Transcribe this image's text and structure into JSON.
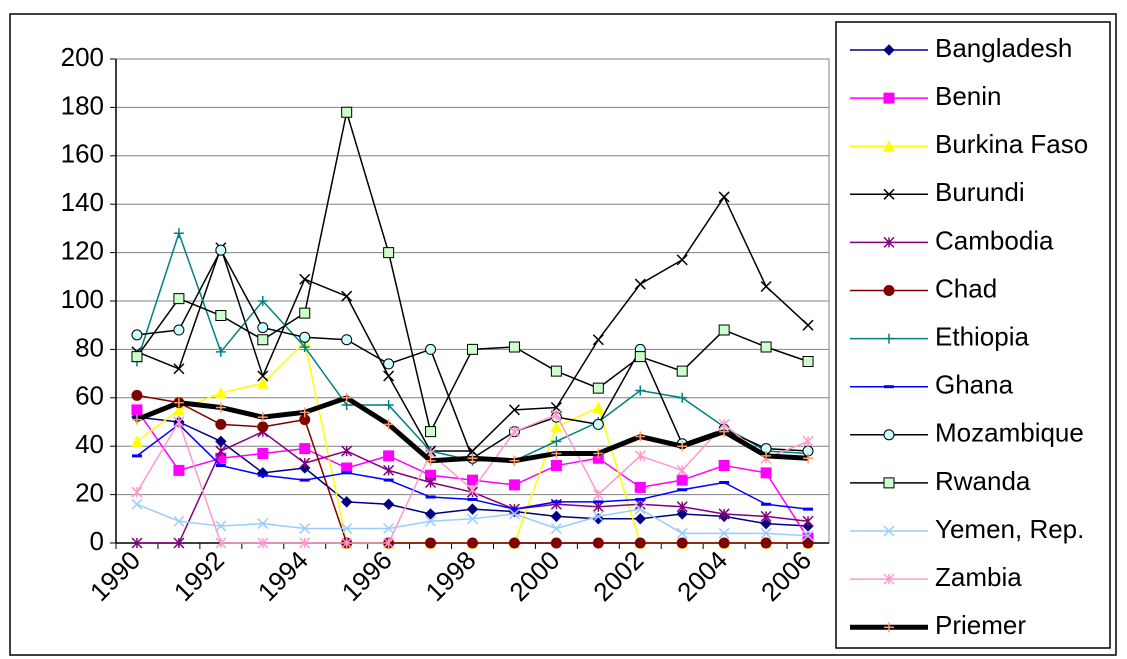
{
  "chart_data": {
    "type": "line",
    "categories": [
      "1990",
      null,
      "1992",
      null,
      "1994",
      null,
      "1996",
      null,
      "1998",
      null,
      "2000",
      null,
      "2002",
      null,
      "2004",
      null,
      "2006"
    ],
    "ylim": [
      0,
      200
    ],
    "yticks": [
      0,
      20,
      40,
      60,
      80,
      100,
      120,
      140,
      160,
      180,
      200
    ],
    "grid": true,
    "legend": "right",
    "series": [
      {
        "name": "Bangladesh",
        "color": "#000080",
        "marker": "diamond",
        "marker_color": "#000080",
        "values": [
          52,
          50,
          42,
          29,
          31,
          17,
          16,
          12,
          14,
          13,
          11,
          10,
          10,
          12,
          11,
          8,
          7
        ]
      },
      {
        "name": "Benin",
        "color": "#ff00ff",
        "marker": "square",
        "marker_color": "#ff00ff",
        "values": [
          55,
          30,
          35,
          37,
          39,
          31,
          36,
          28,
          26,
          24,
          32,
          35,
          23,
          26,
          32,
          29,
          2
        ]
      },
      {
        "name": "Burkina Faso",
        "color": "#ffff00",
        "marker": "triangle",
        "marker_color": "#ffff00",
        "values": [
          42,
          55,
          62,
          66,
          83,
          0,
          0,
          0,
          0,
          0,
          48,
          56,
          0,
          0,
          0,
          0,
          0
        ]
      },
      {
        "name": "Burundi",
        "color": "#000000",
        "marker": "x",
        "marker_color": "#000000",
        "values": [
          79,
          72,
          122,
          69,
          109,
          102,
          69,
          38,
          38,
          55,
          56,
          84,
          107,
          117,
          143,
          106,
          90
        ]
      },
      {
        "name": "Cambodia",
        "color": "#800080",
        "marker": "asterisk",
        "marker_color": "#800080",
        "values": [
          0,
          0,
          38,
          46,
          33,
          38,
          30,
          25,
          21,
          14,
          16,
          15,
          16,
          15,
          12,
          11,
          9
        ]
      },
      {
        "name": "Chad",
        "color": "#800000",
        "marker": "circle",
        "marker_color": "#800000",
        "values": [
          61,
          58,
          49,
          48,
          51,
          0,
          0,
          0,
          0,
          0,
          0,
          0,
          0,
          0,
          0,
          0,
          0
        ]
      },
      {
        "name": "Ethiopia",
        "color": "#008080",
        "marker": "plus",
        "marker_color": "#008080",
        "values": [
          75,
          128,
          79,
          100,
          81,
          57,
          57,
          38,
          34,
          34,
          42,
          50,
          63,
          60,
          48,
          38,
          37
        ]
      },
      {
        "name": "Ghana",
        "color": "#0000ff",
        "marker": "dash",
        "marker_color": "#0000ff",
        "values": [
          36,
          49,
          32,
          28,
          26,
          29,
          26,
          19,
          18,
          14,
          17,
          17,
          18,
          22,
          25,
          16,
          14
        ]
      },
      {
        "name": "Mozambique",
        "color": "#000000",
        "marker": "circle",
        "marker_color": "#ccffff",
        "values": [
          86,
          88,
          121,
          89,
          85,
          84,
          74,
          80,
          35,
          46,
          52,
          49,
          80,
          41,
          47,
          39,
          38
        ]
      },
      {
        "name": "Rwanda",
        "color": "#000000",
        "marker": "square",
        "marker_color": "#ccffcc",
        "values": [
          77,
          101,
          94,
          84,
          95,
          178,
          120,
          46,
          80,
          81,
          71,
          64,
          77,
          71,
          88,
          81,
          75
        ]
      },
      {
        "name": "Yemen, Rep.",
        "color": "#99ccff",
        "marker": "x",
        "marker_color": "#99ccff",
        "values": [
          16,
          9,
          7,
          8,
          6,
          6,
          6,
          9,
          10,
          12,
          6,
          11,
          14,
          4,
          4,
          4,
          3
        ]
      },
      {
        "name": "Zambia",
        "color": "#ff99cc",
        "marker": "asterisk",
        "marker_color": "#ff99cc",
        "values": [
          21,
          50,
          0,
          0,
          0,
          0,
          0,
          37,
          22,
          46,
          53,
          20,
          36,
          30,
          49,
          35,
          42
        ]
      },
      {
        "name": "Priemer",
        "color": "#000000",
        "marker": "plus",
        "marker_color": "#ff9966",
        "width": 5,
        "values": [
          51,
          58,
          56,
          52,
          54,
          60,
          49,
          34,
          35,
          34,
          37,
          37,
          44,
          40,
          46,
          36,
          35
        ]
      }
    ]
  }
}
